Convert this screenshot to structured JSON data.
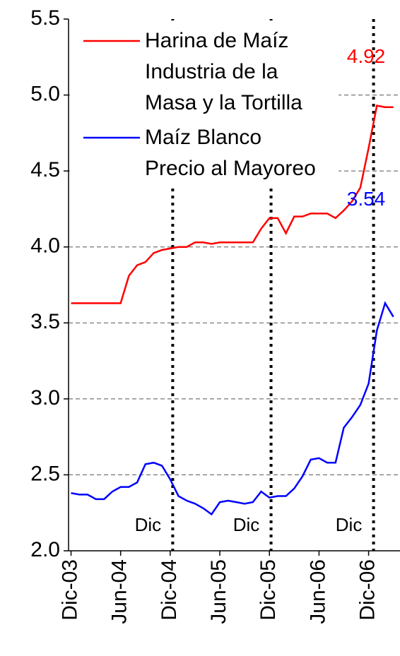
{
  "chart_data": {
    "type": "line",
    "x": [
      0,
      1,
      2,
      3,
      4,
      5,
      6,
      7,
      8,
      9,
      10,
      11,
      12,
      13,
      14,
      15,
      16,
      17,
      18,
      19,
      20,
      21,
      22,
      23,
      24,
      25,
      26,
      27,
      28,
      29,
      30,
      31,
      32,
      33,
      34,
      35,
      36,
      37,
      38,
      39
    ],
    "series": [
      {
        "name": "Harina de Maíz\nIndustria de la\nMasa y la Tortilla",
        "color": "#ff0000",
        "values": [
          3.63,
          3.63,
          3.63,
          3.63,
          3.63,
          3.63,
          3.63,
          3.81,
          3.88,
          3.9,
          3.96,
          3.98,
          3.99,
          4.0,
          4.0,
          4.03,
          4.03,
          4.02,
          4.03,
          4.03,
          4.03,
          4.03,
          4.03,
          4.12,
          4.19,
          4.19,
          4.09,
          4.2,
          4.2,
          4.22,
          4.22,
          4.22,
          4.19,
          4.24,
          4.3,
          4.39,
          4.65,
          4.93,
          4.92,
          4.92
        ]
      },
      {
        "name": "Maíz Blanco\nPrecio al Mayoreo",
        "color": "#0000ff",
        "values": [
          2.38,
          2.37,
          2.37,
          2.34,
          2.34,
          2.39,
          2.42,
          2.42,
          2.45,
          2.57,
          2.58,
          2.56,
          2.47,
          2.36,
          2.33,
          2.31,
          2.28,
          2.24,
          2.32,
          2.33,
          2.32,
          2.31,
          2.32,
          2.39,
          2.35,
          2.36,
          2.36,
          2.41,
          2.49,
          2.6,
          2.61,
          2.58,
          2.58,
          2.81,
          2.88,
          2.96,
          3.1,
          3.45,
          3.63,
          3.54
        ]
      }
    ],
    "value_labels": [
      "4.92",
      "3.54"
    ],
    "xlim": [
      -0.3,
      39.8
    ],
    "xticks": [
      {
        "value": 0,
        "label": "Dic-03"
      },
      {
        "value": 6,
        "label": "Jun-04"
      },
      {
        "value": 12,
        "label": "Dic-04"
      },
      {
        "value": 18,
        "label": "Jun-05"
      },
      {
        "value": 24,
        "label": "Dic-05"
      },
      {
        "value": 30,
        "label": "Jun-06"
      },
      {
        "value": 36,
        "label": "Dic-06"
      }
    ],
    "ylim": [
      2.0,
      5.5
    ],
    "yticks": [
      {
        "value": 2.0,
        "label": "2.0"
      },
      {
        "value": 2.5,
        "label": "2.5"
      },
      {
        "value": 3.0,
        "label": "3.0"
      },
      {
        "value": 3.5,
        "label": "3.5"
      },
      {
        "value": 4.0,
        "label": "4.0"
      },
      {
        "value": 4.5,
        "label": "4.5"
      },
      {
        "value": 5.0,
        "label": "5.0"
      },
      {
        "value": 5.5,
        "label": "5.5"
      }
    ],
    "grid": true,
    "vlines": [
      12.3,
      24.2,
      36.6
    ],
    "vline_labels": [
      "Dic",
      "Dic",
      "Dic"
    ],
    "legend": "upper left"
  }
}
